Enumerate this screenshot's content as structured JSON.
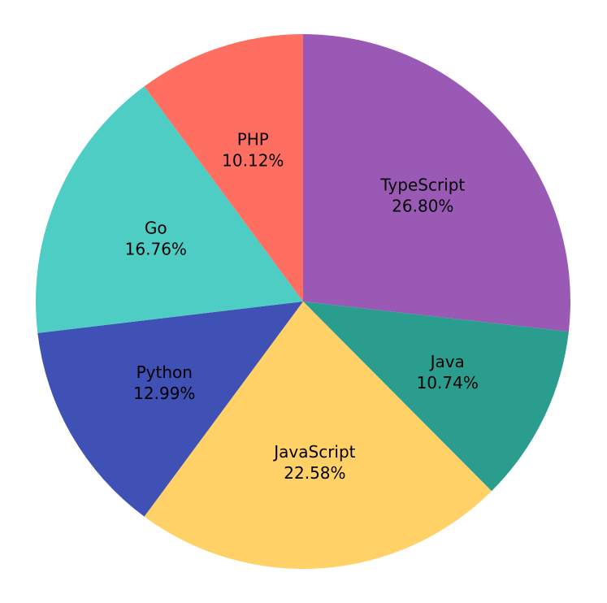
{
  "chart_data": {
    "type": "pie",
    "title": "",
    "start_angle_deg": 90,
    "direction": "clockwise",
    "legend": "none",
    "slices": [
      {
        "label": "TypeScript",
        "value": 26.8,
        "pct_label": "26.80%",
        "color": "#9b59b6"
      },
      {
        "label": "Java",
        "value": 10.74,
        "pct_label": "10.74%",
        "color": "#2a9d8f"
      },
      {
        "label": "JavaScript",
        "value": 22.58,
        "pct_label": "22.58%",
        "color": "#ffd166"
      },
      {
        "label": "Python",
        "value": 12.99,
        "pct_label": "12.99%",
        "color": "#3f51b5"
      },
      {
        "label": "Go",
        "value": 16.76,
        "pct_label": "16.76%",
        "color": "#4ecdc4"
      },
      {
        "label": "PHP",
        "value": 10.12,
        "pct_label": "10.12%",
        "color": "#ff6f61"
      }
    ]
  }
}
